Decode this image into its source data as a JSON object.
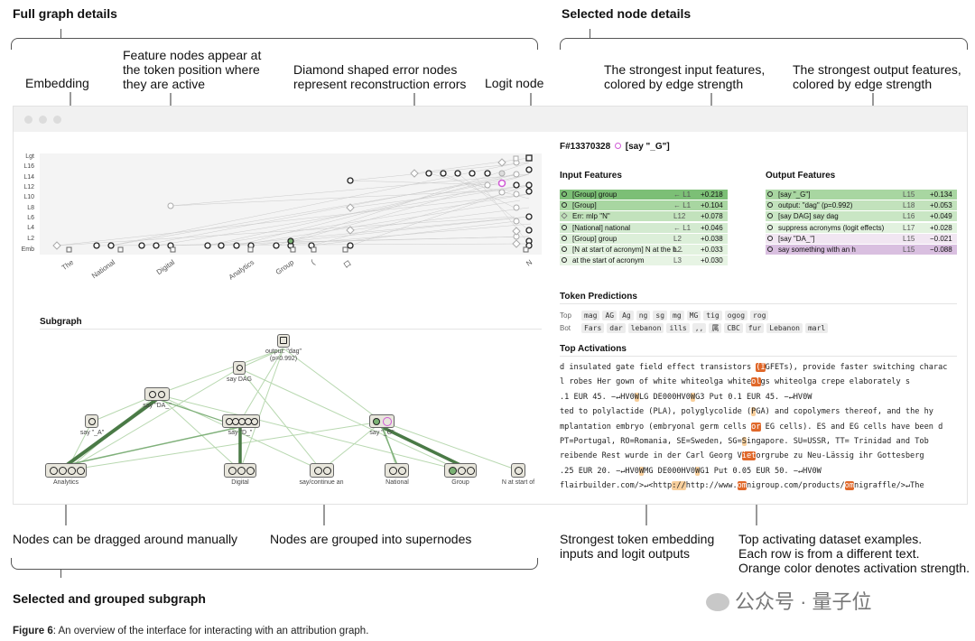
{
  "headers": {
    "full_graph": "Full graph details",
    "selected_node": "Selected node details",
    "subgraph_section": "Selected and grouped subgraph"
  },
  "annotations": {
    "embedding": "Embedding",
    "feature_nodes": [
      "Feature nodes appear at",
      "the token position where",
      "they are active"
    ],
    "diamond": [
      "Diamond shaped error nodes",
      "represent reconstruction errors"
    ],
    "logit": "Logit node",
    "strongest_input": [
      "The strongest input features,",
      "colored by edge strength"
    ],
    "strongest_output": [
      "The strongest output features,",
      "colored by edge strength"
    ],
    "dragged": "Nodes can be dragged around manually",
    "grouped": "Nodes are grouped into supernodes",
    "token_embed": [
      "Strongest token embedding",
      "inputs and logit outputs"
    ],
    "top_act": [
      "Top activating dataset examples.",
      "Each row is from a different text.",
      "Orange color denotes activation strength."
    ]
  },
  "graph": {
    "layers": [
      "Lgt",
      "L16",
      "L14",
      "L12",
      "L10",
      "L8",
      "L6",
      "L4",
      "L2",
      "Emb"
    ],
    "tokens": [
      "The",
      "National",
      "Digital",
      "Analytics",
      "Group",
      "(",
      "口",
      "N"
    ]
  },
  "subgraph": {
    "title": "Subgraph",
    "nodes": [
      "output: \"dag\"",
      "(p=0.992)",
      "say DAG",
      "say \"DA_\"",
      "say \"_A\"",
      "say \"D_\"",
      "say \"_G\"",
      "Analytics",
      "Digital",
      "say/continue an",
      "National",
      "Group",
      "N at start of"
    ]
  },
  "node_detail": {
    "id": "F#13370328",
    "label": "[say \"_G\"]",
    "input_title": "Input Features",
    "output_title": "Output Features",
    "inputs": [
      {
        "name": "[Group] group",
        "layer": "← L1",
        "value": "+0.218"
      },
      {
        "name": "[Group]",
        "layer": "← L1",
        "value": "+0.104"
      },
      {
        "name": "Err: mlp \"N\"",
        "layer": "L12",
        "value": "+0.078"
      },
      {
        "name": "[National] national",
        "layer": "← L1",
        "value": "+0.046"
      },
      {
        "name": "[Group] group",
        "layer": "L2",
        "value": "+0.038"
      },
      {
        "name": "[N at start of acronym] N at the b...",
        "layer": "L2",
        "value": "+0.033"
      },
      {
        "name": "at the start of acronym",
        "layer": "L3",
        "value": "+0.030"
      }
    ],
    "outputs": [
      {
        "name": "[say \"_G\"]",
        "layer": "L15",
        "value": "+0.134"
      },
      {
        "name": "output: \"dag\" (p=0.992)",
        "layer": "L18",
        "value": "+0.053"
      },
      {
        "name": "[say DAG] say dag",
        "layer": "L16",
        "value": "+0.049"
      },
      {
        "name": "suppress acronyms (logit effects)",
        "layer": "L17",
        "value": "+0.028"
      },
      {
        "name": "[say \"DA_\"]",
        "layer": "L15",
        "value": "−0.021"
      },
      {
        "name": "say something with an h",
        "layer": "L15",
        "value": "−0.088"
      }
    ],
    "token_pred_title": "Token Predictions",
    "top_label": "Top",
    "bot_label": "Bot",
    "top_tokens": [
      "mag",
      "AG",
      "Ag",
      "ng",
      "sg",
      "mg",
      "MG",
      "tig",
      "ogog",
      "rog"
    ],
    "bot_tokens": [
      "Fars",
      "dar",
      "lebanon",
      "ills",
      ",,",
      "属",
      "CBC",
      "fur",
      "Lebanon",
      "marl"
    ],
    "top_act_title": "Top Activations",
    "activations": [
      [
        "d insulated gate field effect transistors ",
        "(I",
        "GFETs), provide faster switching charac"
      ],
      [
        "l robes Her gown of white whiteolga white",
        "ol",
        "gs whiteolga crepe elaborately s"
      ],
      [
        "      .1  EUR 45. −↵HV0",
        "W",
        "LG DE000HV0",
        "W",
        "G3 Put 0.1 EUR 45. −↵HV0W"
      ],
      [
        "ted to polylactide (PLA), polyglycolide (",
        "P",
        "GA) and copolymers thereof, and the hy"
      ],
      [
        "mplantation embryo (embryonal germ cells ",
        "or",
        " EG cells). ES and EG cells have been d"
      ],
      [
        " PT=Portugal, RO=Romania, SE=Sweden, SG=",
        "S",
        "ingapore. SU=USSR, TT= Trinidad and Tob"
      ],
      [
        "reibende Rest wurde in der Carl Georg V",
        "iet",
        "orgrube zu Neu-Lässig ihr Gottesberg"
      ],
      [
        "      .25  EUR 20. −↵HV0",
        "W",
        "MG DE000HV0",
        "W",
        "G1 Put 0.05 EUR 50. −↵HV0W"
      ],
      [
        "flairbuilder.com/>↵<http",
        "://",
        "http://www.",
        "om",
        "nigroup.com/products/",
        "om",
        "nigraffle/>↵The"
      ]
    ]
  },
  "watermark": "公众号 · 量子位",
  "caption": {
    "label": "Figure 6",
    "text": ": An overview of the interface for interacting with an attribution graph."
  }
}
